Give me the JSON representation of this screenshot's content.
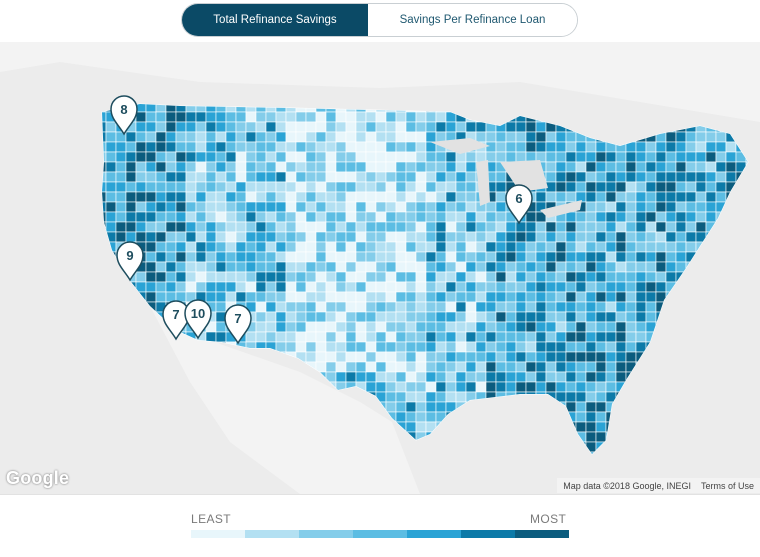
{
  "tabs": [
    {
      "label": "Total Refinance Savings",
      "active": true
    },
    {
      "label": "Savings Per Refinance Loan",
      "active": false
    }
  ],
  "map": {
    "attribution": "Map data ©2018 Google, INEGI",
    "terms": "Terms of Use",
    "logo": "Google",
    "pins": [
      "8",
      "6",
      "9",
      "7",
      "10",
      "7"
    ]
  },
  "legend": {
    "least": "LEAST",
    "most": "MOST",
    "colors": [
      "#e8f6fb",
      "#b3e0f2",
      "#84cdea",
      "#5cbde3",
      "#2aa3d5",
      "#0c7aa8",
      "#0b5c7e"
    ]
  }
}
